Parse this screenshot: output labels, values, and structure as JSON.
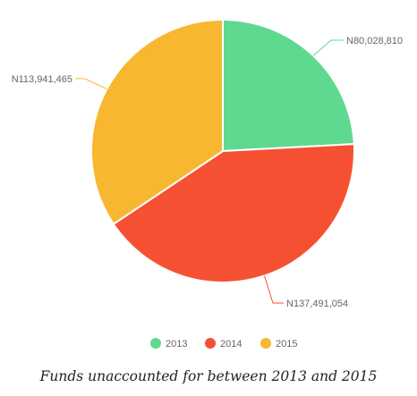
{
  "chart_data": {
    "type": "pie",
    "categories": [
      "2013",
      "2014",
      "2015"
    ],
    "values": [
      80028810,
      137491054,
      113941465
    ],
    "data_labels": [
      "N80,028,810",
      "N137,491,054",
      "N113,941,465"
    ],
    "colors": [
      "#5fd98f",
      "#f65032",
      "#f7b731"
    ],
    "legend_position": "bottom",
    "start_angle": "12 o'clock, clockwise"
  },
  "caption": "Funds unaccounted for between 2013 and 2015"
}
